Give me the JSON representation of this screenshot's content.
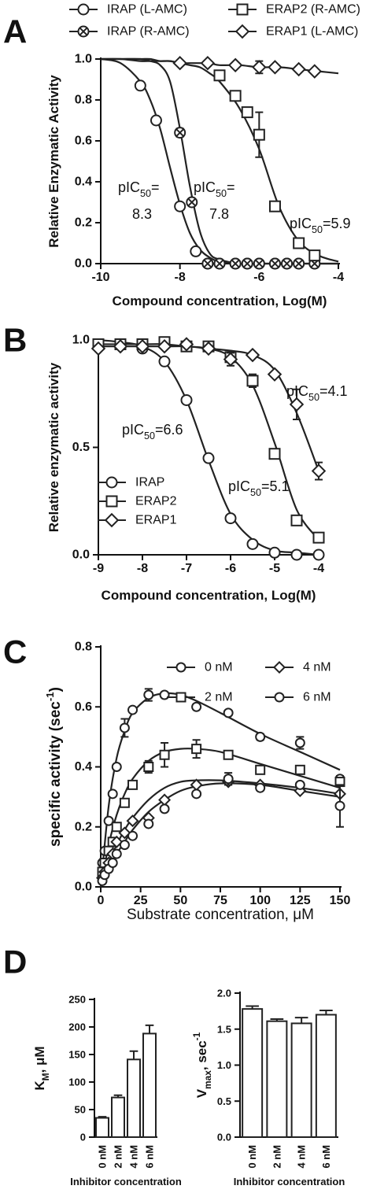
{
  "chart_data": [
    {
      "type": "scatter",
      "panel": "A",
      "xlabel": "Compound concentration, Log(M)",
      "ylabel": "Relative Enzymatic Activity",
      "xlim": [
        -10,
        -4
      ],
      "xticks": [
        -10,
        -8,
        -6,
        -4
      ],
      "ylim": [
        0,
        1
      ],
      "yticks": [
        {
          "value": 0,
          "label": "0.0"
        },
        {
          "value": 0.2,
          "label": "0.2"
        },
        {
          "value": 0.4,
          "label": "0.4"
        },
        {
          "value": 0.6,
          "label": "0.6"
        },
        {
          "value": 0.8,
          "label": "0.8"
        },
        {
          "value": 1,
          "label": "1.0"
        }
      ],
      "fit_x": [
        -10,
        -9.5,
        -9,
        -8.75,
        -8.5,
        -8.25,
        -8,
        -7.75,
        -7.5,
        -7.25,
        -7,
        -6.5,
        -6,
        -5.5,
        -5,
        -4.5,
        -4
      ],
      "series": [
        {
          "name": "IRAP (L-AMC)",
          "marker": "circle",
          "color": "#222222",
          "x": [
            -9,
            -8.6,
            -8,
            -7.6,
            -7.3,
            -7,
            -6.6,
            -6.3,
            -6,
            -5.6,
            -5.3,
            -5,
            -4.6
          ],
          "values": [
            0.87,
            0.7,
            0.28,
            0.06,
            0,
            0,
            0,
            0,
            0,
            0,
            0,
            0,
            0
          ],
          "errors": [
            null,
            null,
            null,
            null,
            null,
            null,
            null,
            null,
            null,
            null,
            null,
            null,
            null
          ],
          "fit_values": [
            1.0,
            0.98,
            0.89,
            0.8,
            0.66,
            0.47,
            0.29,
            0.15,
            0.07,
            0.03,
            0.01,
            0,
            0,
            0,
            0,
            0,
            0
          ]
        },
        {
          "name": "IRAP (R-AMC)",
          "marker": "circle-x",
          "color": "#222222",
          "x": [
            -8,
            -7.7,
            -7.3,
            -7,
            -6.6,
            -6.3,
            -6,
            -5.6,
            -5.3,
            -5,
            -4.6
          ],
          "values": [
            0.64,
            0.3,
            0,
            0,
            0,
            0,
            0,
            0,
            0,
            0,
            0
          ],
          "errors": [
            0.02,
            null,
            null,
            null,
            null,
            null,
            null,
            null,
            null,
            null,
            null
          ],
          "fit_values": [
            1.0,
            1.0,
            1.0,
            0.99,
            0.97,
            0.89,
            0.66,
            0.38,
            0.16,
            0.05,
            0.02,
            0,
            0,
            0,
            0,
            0,
            0
          ]
        },
        {
          "name": "ERAP2 (R-AMC)",
          "marker": "square",
          "color": "#222222",
          "x": [
            -7,
            -6.6,
            -6.3,
            -6,
            -5.6,
            -5,
            -4.6
          ],
          "values": [
            0.92,
            0.82,
            0.74,
            0.63,
            0.28,
            0.1,
            0.04
          ],
          "errors": [
            0.02,
            null,
            null,
            0.11,
            null,
            null,
            null
          ],
          "fit_values": [
            1.0,
            1.0,
            1.0,
            1.0,
            0.99,
            0.99,
            0.98,
            0.97,
            0.96,
            0.93,
            0.89,
            0.76,
            0.56,
            0.28,
            0.11,
            0.04,
            0.01
          ]
        },
        {
          "name": "ERAP1 (L-AMC)",
          "marker": "diamond",
          "color": "#222222",
          "x": [
            -8,
            -7.3,
            -6.6,
            -6,
            -5.6,
            -5,
            -4.6
          ],
          "values": [
            0.98,
            0.98,
            0.97,
            0.96,
            0.96,
            0.95,
            0.94
          ],
          "errors": [
            null,
            null,
            null,
            0.03,
            null,
            null,
            null
          ],
          "fit_values": [
            1.0,
            1.0,
            0.99,
            0.99,
            0.99,
            0.99,
            0.98,
            0.98,
            0.98,
            0.98,
            0.97,
            0.97,
            0.96,
            0.96,
            0.95,
            0.94,
            0.93
          ]
        }
      ],
      "annotations": [
        {
          "parts": [
            {
              "text": "pIC"
            },
            {
              "text": "50",
              "shift": "sub"
            },
            {
              "text": "="
            }
          ],
          "line2": "8.3"
        },
        {
          "parts": [
            {
              "text": "pIC"
            },
            {
              "text": "50",
              "shift": "sub"
            },
            {
              "text": "="
            }
          ],
          "line2": "7.8"
        },
        {
          "parts": [
            {
              "text": "pIC"
            },
            {
              "text": "50",
              "shift": "sub"
            },
            {
              "text": "=5.9"
            }
          ]
        }
      ]
    },
    {
      "type": "scatter",
      "panel": "B",
      "xlabel": "Compound concentration, Log(M)",
      "ylabel": "Relative enzymatic activity",
      "xlim": [
        -9,
        -4
      ],
      "xticks": [
        -9,
        -8,
        -7,
        -6,
        -5,
        -4
      ],
      "ylim": [
        0,
        1
      ],
      "yticks": [
        {
          "value": 0,
          "label": "0.0"
        },
        {
          "value": 0.5,
          "label": "0.5"
        },
        {
          "value": 1,
          "label": "1.0"
        }
      ],
      "fit_x": [
        -9,
        -8.5,
        -8,
        -7.5,
        -7,
        -6.5,
        -6,
        -5.5,
        -5,
        -4.5,
        -4
      ],
      "series": [
        {
          "name": "IRAP",
          "marker": "circle",
          "color": "#222222",
          "x": [
            -9,
            -8.5,
            -8,
            -7.5,
            -7,
            -6.5,
            -6,
            -5.5,
            -5,
            -4.5,
            -4
          ],
          "values": [
            0.98,
            0.98,
            0.96,
            0.9,
            0.72,
            0.45,
            0.17,
            0.05,
            0.01,
            0,
            0
          ],
          "errors": [
            0.02,
            null,
            null,
            null,
            null,
            null,
            null,
            null,
            null,
            null,
            null
          ],
          "fit_values": [
            1.0,
            0.99,
            0.97,
            0.9,
            0.72,
            0.44,
            0.19,
            0.07,
            0.02,
            0.01,
            0
          ]
        },
        {
          "name": "ERAP2",
          "marker": "square",
          "color": "#222222",
          "x": [
            -9,
            -8.5,
            -8,
            -7.5,
            -7,
            -6.5,
            -6,
            -5.5,
            -5,
            -4.5,
            -4
          ],
          "values": [
            0.98,
            0.98,
            0.98,
            0.99,
            0.97,
            0.97,
            0.92,
            0.81,
            0.47,
            0.16,
            0.08
          ],
          "errors": [
            null,
            null,
            null,
            null,
            null,
            null,
            null,
            0.03,
            null,
            null,
            null
          ],
          "fit_values": [
            0.98,
            0.98,
            0.98,
            0.98,
            0.97,
            0.96,
            0.92,
            0.79,
            0.52,
            0.21,
            0.07
          ]
        },
        {
          "name": "ERAP1",
          "marker": "diamond",
          "color": "#222222",
          "x": [
            -9,
            -8.5,
            -8,
            -7.5,
            -7,
            -6.5,
            -6,
            -5.5,
            -5,
            -4.5,
            -4
          ],
          "values": [
            0.96,
            0.97,
            0.97,
            0.97,
            0.98,
            0.96,
            0.91,
            0.93,
            0.84,
            0.7,
            0.39
          ],
          "errors": [
            null,
            null,
            null,
            null,
            null,
            null,
            0.03,
            null,
            null,
            0.07,
            0.04
          ],
          "fit_values": [
            0.97,
            0.97,
            0.97,
            0.97,
            0.97,
            0.96,
            0.95,
            0.93,
            0.86,
            0.66,
            0.39
          ]
        }
      ],
      "annotations": [
        {
          "parts": [
            {
              "text": "pIC"
            },
            {
              "text": "50",
              "shift": "sub"
            },
            {
              "text": "=6.6"
            }
          ]
        },
        {
          "parts": [
            {
              "text": "pIC"
            },
            {
              "text": "50",
              "shift": "sub"
            },
            {
              "text": "=5.1"
            }
          ]
        },
        {
          "parts": [
            {
              "text": "pIC"
            },
            {
              "text": "50",
              "shift": "sub"
            },
            {
              "text": "=4.1"
            }
          ]
        }
      ]
    },
    {
      "type": "scatter",
      "panel": "C",
      "xlabel": "Substrate concentration, μM",
      "ylabel": {
        "parts": [
          {
            "text": "specific activity (sec"
          },
          {
            "text": "-1",
            "shift": "sup"
          },
          {
            "text": ")"
          }
        ]
      },
      "xlim": [
        0,
        150
      ],
      "xticks": [
        0,
        25,
        50,
        75,
        100,
        125,
        150
      ],
      "ylim": [
        0,
        0.8
      ],
      "yticks": [
        {
          "value": 0,
          "label": "0.0"
        },
        0.2,
        0.4,
        0.6,
        0.8
      ],
      "fit_x": [
        0,
        5,
        10,
        15,
        20,
        30,
        40,
        50,
        60,
        75,
        100,
        125,
        150
      ],
      "series": [
        {
          "name": "0 nM",
          "marker": "circle",
          "color": "#222222",
          "x": [
            1,
            2.5,
            5,
            7.5,
            10,
            15,
            20,
            30,
            40,
            60,
            80,
            100,
            125,
            150
          ],
          "values": [
            0.08,
            0.12,
            0.22,
            0.31,
            0.4,
            0.53,
            0.59,
            0.64,
            0.64,
            0.6,
            0.58,
            0.5,
            0.48,
            0.36
          ],
          "errors": [
            null,
            null,
            null,
            null,
            null,
            0.03,
            null,
            0.02,
            null,
            null,
            null,
            0.01,
            0.02,
            0.01
          ],
          "fit_values": [
            0,
            0.27,
            0.43,
            0.52,
            0.58,
            0.63,
            0.645,
            0.64,
            0.62,
            0.58,
            0.51,
            0.45,
            0.39
          ]
        },
        {
          "name": "2 nM",
          "marker": "square",
          "color": "#222222",
          "x": [
            1,
            2.5,
            5,
            7.5,
            10,
            15,
            20,
            30,
            40,
            60,
            80,
            100,
            125,
            150
          ],
          "values": [
            0.05,
            0.08,
            0.12,
            0.15,
            0.2,
            0.28,
            0.34,
            0.4,
            0.44,
            0.46,
            0.44,
            0.39,
            0.39,
            0.35
          ],
          "errors": [
            null,
            null,
            null,
            null,
            null,
            null,
            null,
            0.02,
            0.04,
            0.03,
            null,
            null,
            null,
            null
          ],
          "fit_values": [
            0,
            0.14,
            0.24,
            0.31,
            0.36,
            0.42,
            0.45,
            0.46,
            0.46,
            0.45,
            0.41,
            0.37,
            0.33
          ]
        },
        {
          "name": "4 nM",
          "marker": "diamond",
          "color": "#222222",
          "x": [
            1,
            2.5,
            5,
            7.5,
            10,
            15,
            20,
            30,
            40,
            60,
            80,
            100,
            125,
            150
          ],
          "values": [
            0.03,
            0.05,
            0.08,
            0.11,
            0.15,
            0.18,
            0.22,
            0.23,
            0.29,
            0.34,
            0.35,
            0.34,
            0.32,
            0.31
          ],
          "errors": [
            null,
            null,
            null,
            null,
            null,
            null,
            null,
            null,
            null,
            null,
            0.01,
            null,
            null,
            null
          ],
          "fit_values": [
            0,
            0.08,
            0.14,
            0.19,
            0.23,
            0.29,
            0.33,
            0.35,
            0.355,
            0.355,
            0.345,
            0.33,
            0.31
          ]
        },
        {
          "name": "6 nM",
          "marker": "circle",
          "color": "#222222",
          "x": [
            1,
            2.5,
            5,
            7.5,
            10,
            15,
            20,
            30,
            40,
            60,
            80,
            100,
            125,
            150
          ],
          "values": [
            0.02,
            0.04,
            0.06,
            0.08,
            0.11,
            0.14,
            0.17,
            0.21,
            0.26,
            0.31,
            0.36,
            0.33,
            0.34,
            0.27
          ],
          "errors": [
            null,
            null,
            null,
            null,
            null,
            null,
            null,
            null,
            null,
            null,
            0.02,
            null,
            null,
            0.07
          ],
          "fit_values": [
            0,
            0.06,
            0.11,
            0.15,
            0.19,
            0.25,
            0.29,
            0.32,
            0.335,
            0.345,
            0.34,
            0.32,
            0.3
          ]
        }
      ]
    },
    {
      "type": "bar",
      "panel": "D",
      "xlabel": "Inhibitor concentration",
      "ylabel": {
        "parts": [
          {
            "text": "K"
          },
          {
            "text": "M",
            "shift": "sub"
          },
          {
            "text": ", μM"
          }
        ]
      },
      "categories": [
        "0 nM",
        "2 nM",
        "4 nM",
        "6 nM"
      ],
      "values": [
        35,
        72,
        141,
        188
      ],
      "errors": [
        2,
        4,
        15,
        15
      ],
      "color": "#222222",
      "ylim": [
        0,
        250
      ],
      "yticks": [
        0,
        50,
        100,
        150,
        200,
        250
      ]
    },
    {
      "type": "bar",
      "xlabel": "Inhibitor concentration",
      "ylabel": {
        "parts": [
          {
            "text": "V"
          },
          {
            "text": "max",
            "shift": "sub"
          },
          {
            "text": ", sec"
          },
          {
            "text": "-1",
            "shift": "sup"
          }
        ]
      },
      "categories": [
        "0 nM",
        "2 nM",
        "4 nM",
        "6 nM"
      ],
      "values": [
        1.78,
        1.61,
        1.58,
        1.7
      ],
      "errors": [
        0.04,
        0.03,
        0.08,
        0.06
      ],
      "color": "#222222",
      "ylim": [
        0,
        2
      ],
      "yticks": [
        {
          "value": 0,
          "label": "0.0"
        },
        {
          "value": 0.5,
          "label": "0.5"
        },
        {
          "value": 1,
          "label": "1.0"
        },
        {
          "value": 1.5,
          "label": "1.5"
        },
        {
          "value": 2,
          "label": "2.0"
        }
      ]
    }
  ]
}
